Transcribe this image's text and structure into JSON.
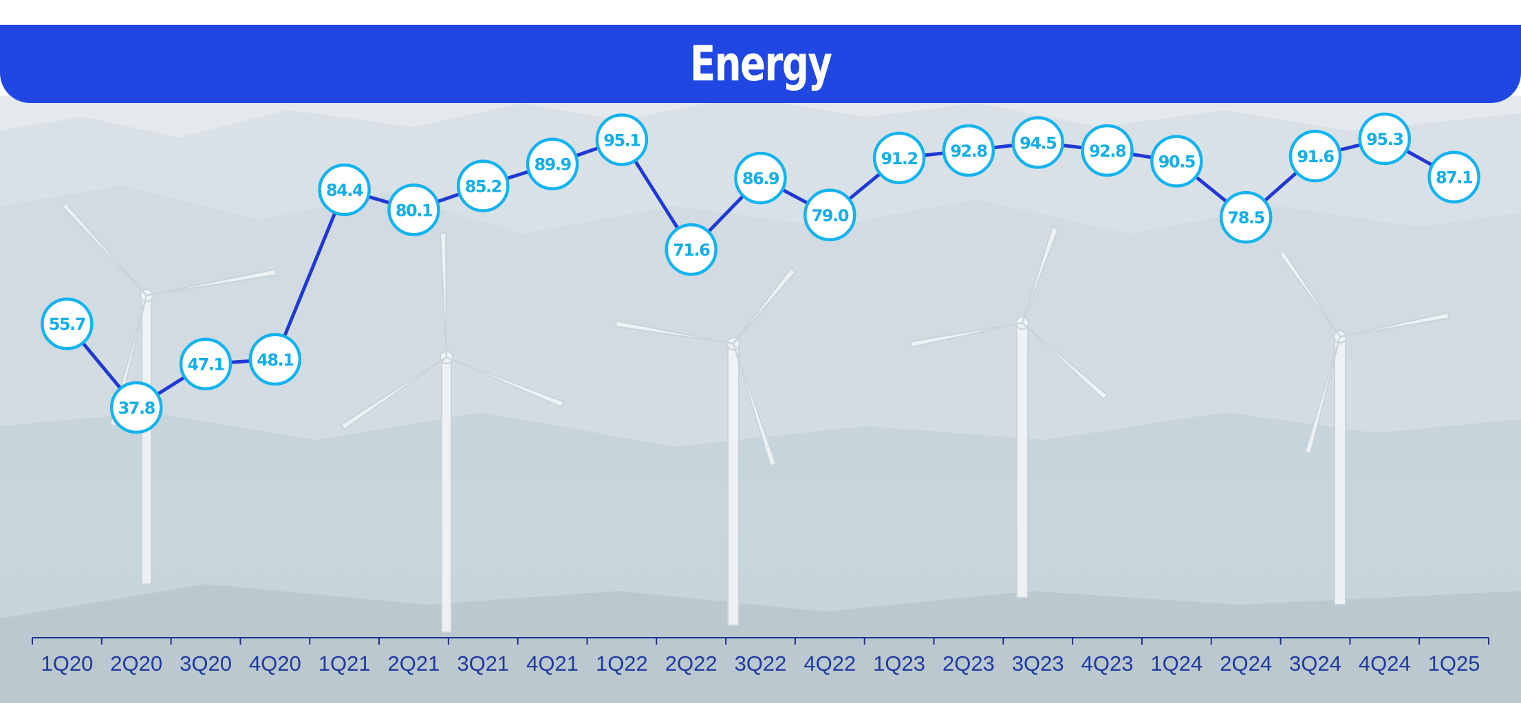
{
  "title": "Energy",
  "colors": {
    "title_bar": "#2047e2",
    "line": "#2138d4",
    "marker_stroke": "#14b3ee",
    "marker_fill": "#ffffff",
    "label": "#14aee8",
    "axis": "#1c2f8f",
    "tick_label": "#1f3a9e"
  },
  "background": "wind-turbines-mountain-landscape",
  "chart_data": {
    "type": "line",
    "title": "Energy",
    "xlabel": "",
    "ylabel": "",
    "ylim": [
      0,
      100
    ],
    "grid": false,
    "categories": [
      "1Q20",
      "2Q20",
      "3Q20",
      "4Q20",
      "1Q21",
      "2Q21",
      "3Q21",
      "4Q21",
      "1Q22",
      "2Q22",
      "3Q22",
      "4Q22",
      "1Q23",
      "2Q23",
      "3Q23",
      "4Q23",
      "1Q24",
      "2Q24",
      "3Q24",
      "4Q24",
      "1Q25"
    ],
    "values": [
      55.7,
      37.8,
      47.1,
      48.1,
      84.4,
      80.1,
      85.2,
      89.9,
      95.1,
      71.6,
      86.9,
      79.0,
      91.2,
      92.8,
      94.5,
      92.8,
      90.5,
      78.5,
      91.6,
      95.3,
      87.1
    ],
    "value_labels": [
      "55.7",
      "37.8",
      "47.1",
      "48.1",
      "84.4",
      "80.1",
      "85.2",
      "89.9",
      "95.1",
      "71.6",
      "86.9",
      "79.0",
      "91.2",
      "92.8",
      "94.5",
      "92.8",
      "90.5",
      "78.5",
      "91.6",
      "95.3",
      "87.1"
    ]
  }
}
